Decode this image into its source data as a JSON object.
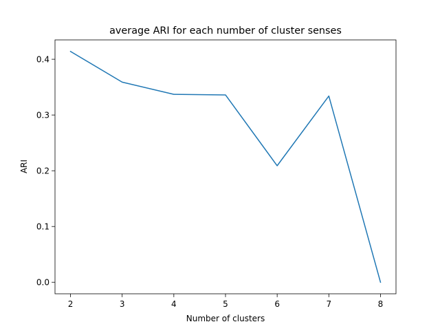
{
  "chart_data": {
    "type": "line",
    "title": "average ARI for each number of cluster senses",
    "xlabel": "Number of clusters",
    "ylabel": "ARI",
    "x": [
      2,
      3,
      4,
      5,
      6,
      7,
      8
    ],
    "series": [
      {
        "values": [
          0.414,
          0.359,
          0.337,
          0.336,
          0.209,
          0.334,
          0.0
        ],
        "color": "#1f77b4"
      }
    ],
    "xlim": [
      1.7,
      8.3
    ],
    "ylim": [
      -0.0207,
      0.4347
    ],
    "xticks": [
      "2",
      "3",
      "4",
      "5",
      "6",
      "7",
      "8"
    ],
    "yticks": [
      "0.0",
      "0.1",
      "0.2",
      "0.3",
      "0.4"
    ],
    "grid": false
  }
}
